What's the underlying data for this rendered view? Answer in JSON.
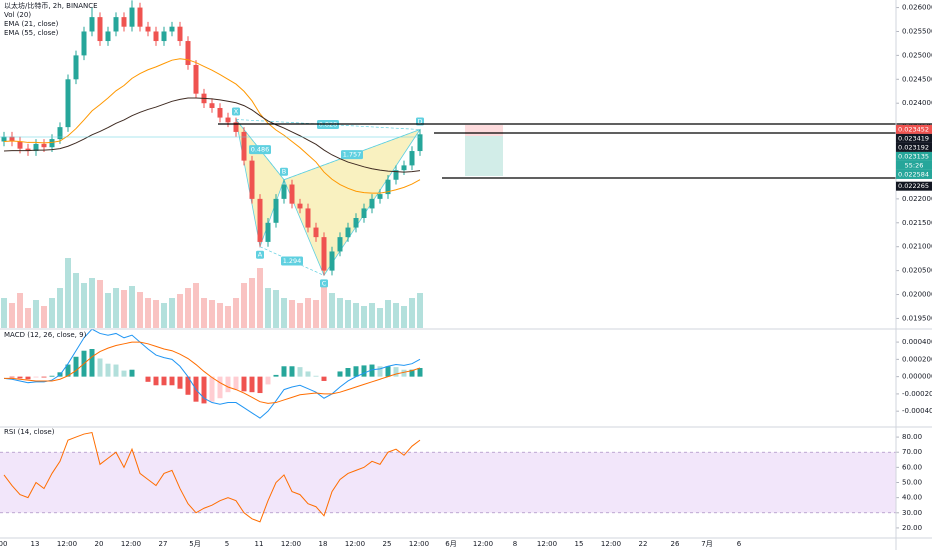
{
  "chart_data": {
    "type": "candlestick",
    "title": "以太坊/比特币, 2h, BINANCE",
    "x_labels": [
      "00",
      "13",
      "12:00",
      "20",
      "12:00",
      "27",
      "5月",
      "5",
      "11",
      "12:00",
      "18",
      "12:00",
      "25",
      "12:00",
      "6月",
      "12:00",
      "8",
      "12:00",
      "15",
      "12:00",
      "22",
      "26",
      "7月",
      "6"
    ],
    "ylim": [
      0.0193,
      0.0262
    ],
    "yticks": [
      {
        "value": 0.0195,
        "label": "0.019500"
      },
      {
        "value": 0.02,
        "label": "0.020000"
      },
      {
        "value": 0.0205,
        "label": "0.020500"
      },
      {
        "value": 0.021,
        "label": "0.021000"
      },
      {
        "value": 0.0215,
        "label": "0.021500"
      },
      {
        "value": 0.022,
        "label": "0.022000"
      },
      {
        "value": 0.0225,
        "label": "0.022500"
      },
      {
        "value": 0.023,
        "label": "0.023000"
      },
      {
        "value": 0.0235,
        "label": "0.023500"
      },
      {
        "value": 0.024,
        "label": "0.024000"
      },
      {
        "value": 0.0245,
        "label": "0.024500"
      },
      {
        "value": 0.025,
        "label": "0.025000"
      },
      {
        "value": 0.0255,
        "label": "0.025500"
      },
      {
        "value": 0.026,
        "label": "0.026000"
      }
    ],
    "up_color": "#26a69a",
    "down_color": "#ef5350",
    "candles": {
      "open": [
        0.0232,
        0.0233,
        0.0232,
        0.02305,
        0.023,
        0.02315,
        0.02308,
        0.02325,
        0.0235,
        0.0245,
        0.025,
        0.0255,
        0.0258,
        0.0253,
        0.0255,
        0.0258,
        0.0256,
        0.026,
        0.0256,
        0.0255,
        0.0253,
        0.0255,
        0.0256,
        0.0253,
        0.0248,
        0.0242,
        0.024,
        0.0239,
        0.0237,
        0.0236,
        0.0234,
        0.0228,
        0.022,
        0.0211,
        0.0215,
        0.022,
        0.0223,
        0.0219,
        0.0218,
        0.0214,
        0.0212,
        0.0205,
        0.0209,
        0.0212,
        0.0214,
        0.0216,
        0.0218,
        0.022,
        0.0221,
        0.0224,
        0.0226,
        0.0227,
        0.023
      ],
      "high": [
        0.0234,
        0.0234,
        0.0233,
        0.02315,
        0.02325,
        0.02325,
        0.02335,
        0.0236,
        0.0246,
        0.0251,
        0.0256,
        0.026,
        0.0259,
        0.0256,
        0.0259,
        0.0259,
        0.02615,
        0.0261,
        0.0257,
        0.0256,
        0.0256,
        0.0257,
        0.0257,
        0.0254,
        0.0249,
        0.0243,
        0.0241,
        0.024,
        0.0238,
        0.0237,
        0.0235,
        0.0229,
        0.0221,
        0.0216,
        0.0221,
        0.0224,
        0.0224,
        0.022,
        0.0219,
        0.0215,
        0.0213,
        0.021,
        0.0213,
        0.0215,
        0.0217,
        0.0219,
        0.0221,
        0.0222,
        0.0225,
        0.0227,
        0.0228,
        0.0231,
        0.02345
      ],
      "low": [
        0.0231,
        0.0231,
        0.02295,
        0.0229,
        0.0229,
        0.02298,
        0.02298,
        0.02315,
        0.0234,
        0.0244,
        0.0249,
        0.0254,
        0.0252,
        0.0252,
        0.0254,
        0.0255,
        0.0255,
        0.0255,
        0.0254,
        0.0252,
        0.0252,
        0.0254,
        0.0252,
        0.0247,
        0.0241,
        0.0239,
        0.0238,
        0.0236,
        0.0235,
        0.0233,
        0.0227,
        0.0219,
        0.021,
        0.021,
        0.0214,
        0.0219,
        0.0218,
        0.0217,
        0.0213,
        0.0211,
        0.0204,
        0.0204,
        0.0208,
        0.0211,
        0.0213,
        0.0215,
        0.0217,
        0.0219,
        0.022,
        0.0223,
        0.0225,
        0.0226,
        0.0229
      ],
      "close": [
        0.0233,
        0.0232,
        0.02305,
        0.023,
        0.02315,
        0.02308,
        0.02325,
        0.0235,
        0.0245,
        0.025,
        0.0255,
        0.0258,
        0.0253,
        0.0255,
        0.0258,
        0.0256,
        0.026,
        0.0256,
        0.0255,
        0.0253,
        0.0255,
        0.0256,
        0.0253,
        0.0248,
        0.0242,
        0.024,
        0.0239,
        0.0237,
        0.0236,
        0.0234,
        0.0228,
        0.022,
        0.0211,
        0.0215,
        0.022,
        0.0223,
        0.0219,
        0.0218,
        0.0214,
        0.0212,
        0.0205,
        0.0209,
        0.0212,
        0.0214,
        0.0216,
        0.0218,
        0.022,
        0.0221,
        0.0224,
        0.0226,
        0.0227,
        0.023,
        0.02335
      ]
    },
    "series": [
      {
        "name": "EMA (21, close)",
        "color": "#ff9800",
        "values": [
          0.0232,
          0.02321,
          0.0232,
          0.02318,
          0.02318,
          0.02317,
          0.02318,
          0.02321,
          0.02332,
          0.02347,
          0.02365,
          0.02384,
          0.02397,
          0.02411,
          0.02426,
          0.02437,
          0.02452,
          0.02462,
          0.0247,
          0.02476,
          0.02483,
          0.0249,
          0.02493,
          0.02491,
          0.02485,
          0.02477,
          0.02469,
          0.0246,
          0.0245,
          0.0244,
          0.02425,
          0.02405,
          0.02378,
          0.02358,
          0.02344,
          0.02333,
          0.0232,
          0.02307,
          0.02292,
          0.02277,
          0.02256,
          0.02241,
          0.0223,
          0.02222,
          0.02216,
          0.02213,
          0.02212,
          0.02212,
          0.02215,
          0.02219,
          0.02224,
          0.02231,
          0.0224
        ]
      },
      {
        "name": "EMA (55, close)",
        "color": "#3f2b22",
        "values": [
          0.023,
          0.02301,
          0.02301,
          0.02301,
          0.02302,
          0.02302,
          0.02303,
          0.02305,
          0.0231,
          0.02317,
          0.02325,
          0.02334,
          0.02341,
          0.02349,
          0.02358,
          0.02365,
          0.02374,
          0.02381,
          0.02387,
          0.02392,
          0.02398,
          0.02404,
          0.02408,
          0.02411,
          0.02411,
          0.0241,
          0.02409,
          0.02407,
          0.02404,
          0.02401,
          0.02395,
          0.02386,
          0.02374,
          0.02363,
          0.02355,
          0.02348,
          0.0234,
          0.02332,
          0.02323,
          0.02314,
          0.02302,
          0.02292,
          0.02284,
          0.02277,
          0.02272,
          0.02267,
          0.02263,
          0.0226,
          0.02258,
          0.02257,
          0.02256,
          0.02257,
          0.02259
        ]
      }
    ],
    "volume": {
      "name": "Vol (20)",
      "values": [
        30,
        25,
        35,
        20,
        28,
        22,
        30,
        40,
        70,
        55,
        45,
        50,
        48,
        35,
        40,
        38,
        42,
        36,
        30,
        28,
        25,
        30,
        34,
        40,
        45,
        30,
        28,
        25,
        22,
        30,
        45,
        50,
        60,
        40,
        38,
        30,
        28,
        25,
        30,
        28,
        45,
        35,
        30,
        28,
        25,
        22,
        25,
        20,
        28,
        25,
        22,
        30,
        35
      ]
    },
    "pattern": {
      "color": "#5fd0e0",
      "fill": "#f8eeb0",
      "points": [
        {
          "label": "X",
          "index": 29,
          "value": 0.02366
        },
        {
          "label": "A",
          "index": 32,
          "value": 0.021
        },
        {
          "label": "B",
          "index": 35,
          "value": 0.0224
        },
        {
          "label": "C",
          "index": 40,
          "value": 0.0204
        },
        {
          "label": "D",
          "index": 52,
          "value": 0.02345
        }
      ],
      "ratios": [
        {
          "from": "X",
          "to": "D",
          "label": 0.828
        },
        {
          "from": "X",
          "to": "B",
          "label": 0.486
        },
        {
          "from": "B",
          "to": "D",
          "label": 1.757
        },
        {
          "from": "A",
          "to": "C",
          "label": 1.294
        }
      ]
    },
    "price_tags": [
      {
        "value": 0.023452,
        "color": "#ef5350"
      },
      {
        "value": 0.023419,
        "color": "#131722"
      },
      {
        "value": 0.023192,
        "color": "#131722"
      },
      {
        "value": 0.023135,
        "color": "#26a69a"
      },
      {
        "value": 0.022584,
        "color": "#26a69a"
      },
      {
        "value": 0.022265,
        "color": "#131722"
      }
    ],
    "countdown": "55:26",
    "macd": {
      "title": "MACD (12, 26, close, 9)",
      "ylim": [
        -0.00056,
        0.00054
      ],
      "yticks": [
        {
          "value": 0.0004,
          "label": "0.000400"
        },
        {
          "value": 0.0002,
          "label": "0.000200"
        },
        {
          "value": 0,
          "label": "0.000000"
        },
        {
          "value": -0.0002,
          "label": "-0.000200"
        },
        {
          "value": -0.0004,
          "label": "-0.000400"
        }
      ],
      "macd": {
        "color": "#2196f3",
        "values": [
          -2e-05,
          -3e-05,
          -5e-05,
          -7e-05,
          -6e-05,
          -6e-05,
          -4e-05,
          2e-05,
          0.00015,
          0.0003,
          0.00045,
          0.00055,
          0.0005,
          0.00048,
          0.0005,
          0.00045,
          0.00048,
          0.0004,
          0.00032,
          0.00025,
          0.00022,
          0.0002,
          0.00012,
          0,
          -0.00015,
          -0.00025,
          -0.0003,
          -0.00032,
          -0.0003,
          -0.0003,
          -0.00036,
          -0.00042,
          -0.00048,
          -0.0004,
          -0.00028,
          -0.00015,
          -0.00012,
          -0.0001,
          -0.00014,
          -0.00018,
          -0.00025,
          -0.0002,
          -0.00012,
          -5e-05,
          0,
          4e-05,
          8e-05,
          9e-05,
          0.00012,
          0.00014,
          0.00013,
          0.00015,
          0.0002
        ]
      },
      "signal": {
        "color": "#ff6d00",
        "values": [
          -2e-05,
          -2e-05,
          -3e-05,
          -4e-05,
          -5e-05,
          -5e-05,
          -5e-05,
          -3e-05,
          1e-05,
          7e-05,
          0.00015,
          0.00023,
          0.00029,
          0.00033,
          0.00036,
          0.00038,
          0.0004,
          0.0004,
          0.00038,
          0.00035,
          0.00032,
          0.0003,
          0.00026,
          0.00021,
          0.00014,
          6e-05,
          -1e-05,
          -7e-05,
          -0.00012,
          -0.00015,
          -0.00019,
          -0.00024,
          -0.00029,
          -0.00031,
          -0.0003,
          -0.00027,
          -0.00024,
          -0.00021,
          -0.0002,
          -0.00019,
          -0.0002,
          -0.0002,
          -0.00018,
          -0.00015,
          -0.00012,
          -9e-05,
          -6e-05,
          -3e-05,
          0,
          3e-05,
          5e-05,
          7e-05,
          0.0001
        ]
      },
      "histogram": {
        "values": [
          0,
          -1e-05,
          -2e-05,
          -3e-05,
          -1e-05,
          -1e-05,
          1e-05,
          5e-05,
          0.00014,
          0.00023,
          0.0003,
          0.00032,
          0.00021,
          0.00015,
          0.00014,
          7e-05,
          8e-05,
          0,
          -6e-05,
          -0.0001,
          -0.0001,
          -0.0001,
          -0.00014,
          -0.00021,
          -0.00029,
          -0.00031,
          -0.00029,
          -0.00025,
          -0.00018,
          -0.00015,
          -0.00017,
          -0.00018,
          -0.00019,
          -9e-05,
          2e-05,
          0.00012,
          0.00012,
          0.00011,
          6e-05,
          1e-05,
          -5e-05,
          0,
          6e-05,
          0.0001,
          0.00012,
          0.00013,
          0.00014,
          0.00012,
          0.00012,
          0.00011,
          8e-05,
          8e-05,
          0.0001
        ]
      }
    },
    "rsi": {
      "title": "RSI (14, close)",
      "ylim": [
        14,
        86
      ],
      "yticks": [
        {
          "value": 80,
          "label": "80.00"
        },
        {
          "value": 70,
          "label": "70.00"
        },
        {
          "value": 60,
          "label": "60.00"
        },
        {
          "value": 50,
          "label": "50.00"
        },
        {
          "value": 40,
          "label": "40.00"
        },
        {
          "value": 30,
          "label": "30.00"
        },
        {
          "value": 20,
          "label": "20.00"
        }
      ],
      "band": [
        30,
        70
      ],
      "band_color": "#e9d5f7",
      "color": "#ff6d00",
      "values": [
        55,
        48,
        42,
        40,
        50,
        46,
        56,
        64,
        78,
        80,
        82,
        83,
        62,
        66,
        70,
        60,
        72,
        56,
        52,
        48,
        56,
        58,
        46,
        36,
        30,
        33,
        35,
        38,
        40,
        38,
        30,
        26,
        24,
        38,
        50,
        55,
        44,
        42,
        36,
        34,
        28,
        44,
        52,
        56,
        58,
        60,
        64,
        62,
        70,
        72,
        68,
        74,
        78
      ]
    }
  }
}
